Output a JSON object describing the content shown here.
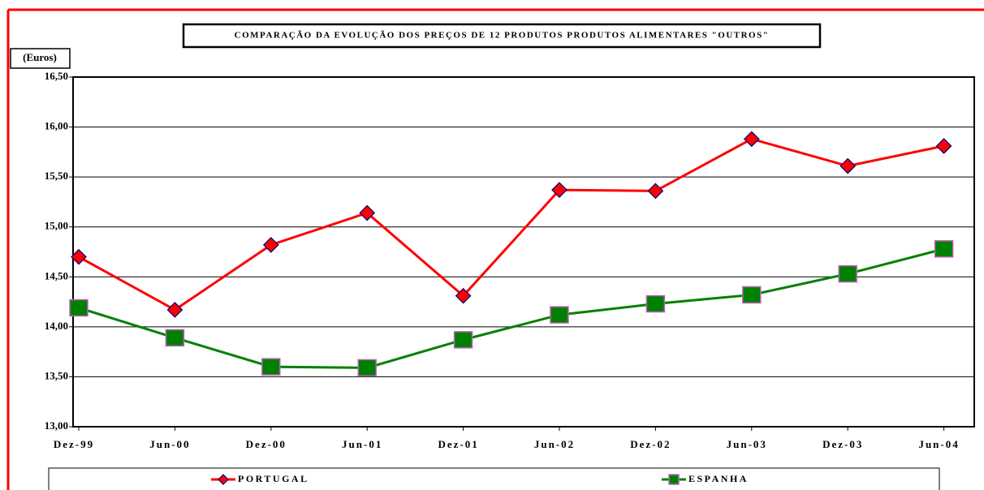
{
  "chart_data": {
    "type": "line",
    "title": "COMPARAÇÃO DA EVOLUÇÃO DOS PREÇOS DE 12 PRODUTOS PRODUTOS ALIMENTARES \"OUTROS\"",
    "y_label": "(Euros)",
    "categories": [
      "Dez-99",
      "Jun-00",
      "Dez-00",
      "Jun-01",
      "Dez-01",
      "Jun-02",
      "Dez-02",
      "Jun-03",
      "Dez-03",
      "Jun-04"
    ],
    "series": [
      {
        "name": "PORTUGAL",
        "color": "#ff0000",
        "marker_color": "#ff0000",
        "values": [
          14.7,
          14.17,
          14.82,
          15.14,
          14.31,
          15.37,
          15.36,
          15.88,
          15.61,
          15.81
        ]
      },
      {
        "name": "ESPANHA",
        "color": "#008000",
        "marker_color": "#008000",
        "values": [
          14.19,
          13.89,
          13.6,
          13.59,
          13.87,
          14.12,
          14.23,
          14.32,
          14.53,
          14.78
        ]
      }
    ],
    "ylim": [
      13.0,
      16.5
    ],
    "yticks": [
      {
        "value": 13.0,
        "label": "13,00"
      },
      {
        "value": 13.5,
        "label": "13,50"
      },
      {
        "value": 14.0,
        "label": "14,00"
      },
      {
        "value": 14.5,
        "label": "14,50"
      },
      {
        "value": 15.0,
        "label": "15,00"
      },
      {
        "value": 15.5,
        "label": "15,50"
      },
      {
        "value": 16.0,
        "label": "16,00"
      },
      {
        "value": 16.5,
        "label": "16,50"
      }
    ],
    "grid": true
  }
}
